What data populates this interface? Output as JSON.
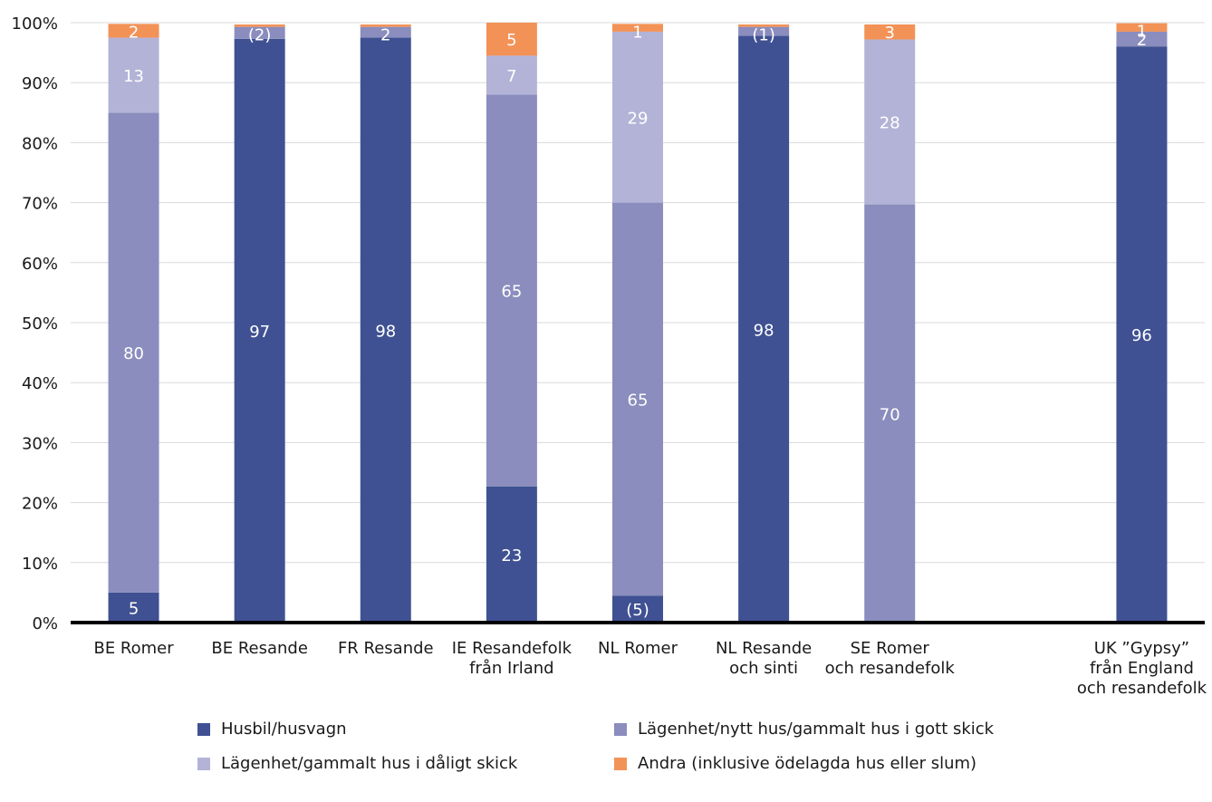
{
  "chart_data": {
    "type": "bar",
    "stacked": true,
    "title": "",
    "xlabel": "",
    "ylabel": "",
    "ylim": [
      0,
      100
    ],
    "y_ticks": [
      "0%",
      "10%",
      "20%",
      "30%",
      "40%",
      "50%",
      "60%",
      "70%",
      "80%",
      "90%",
      "100%"
    ],
    "grid": true,
    "legend_position": "bottom",
    "categories": [
      [
        "BE Romer"
      ],
      [
        "BE Resande"
      ],
      [
        "FR Resande"
      ],
      [
        "IE Resandefolk",
        "från Irland"
      ],
      [
        "NL Romer"
      ],
      [
        "NL Resande",
        "och sinti"
      ],
      [
        "SE Romer",
        "och resandefolk"
      ],
      [
        "UK ”Gypsy”",
        "från England",
        "och resandefolk"
      ]
    ],
    "category_slots": [
      0,
      1,
      2,
      3,
      4,
      5,
      6,
      8
    ],
    "series": [
      {
        "name": "Husbil/husvagn",
        "color": "#3f5192",
        "values": [
          5,
          97.3,
          97.5,
          22.7,
          4.5,
          97.8,
          0,
          96
        ],
        "labels": [
          "5",
          "97",
          "98",
          "23",
          "(5)",
          "98",
          "",
          "96"
        ]
      },
      {
        "name": "Lägenhet/nytt hus/gammalt hus i gott skick",
        "color": "#8a8dbd",
        "values": [
          80,
          2,
          1.8,
          65.3,
          65.5,
          1.5,
          69.7,
          2.5
        ],
        "labels": [
          "80",
          "(2)",
          "2",
          "65",
          "65",
          "(1)",
          "70",
          "2"
        ]
      },
      {
        "name": "Lägenhet/gammalt hus i dåligt skick",
        "color": "#b3b3d7",
        "values": [
          12.5,
          0,
          0,
          6.5,
          28.5,
          0,
          27.5,
          0
        ],
        "labels": [
          "13",
          "",
          "",
          "7",
          "29",
          "",
          "28",
          ""
        ]
      },
      {
        "name": "Andra (inklusive ödelagda hus eller slum)",
        "color": "#f39257",
        "values": [
          2.3,
          0.4,
          0.4,
          5.5,
          1.3,
          0.4,
          2.5,
          1.4
        ],
        "labels": [
          "2",
          "",
          "",
          "5",
          "1",
          "",
          "3",
          "1"
        ]
      }
    ]
  }
}
